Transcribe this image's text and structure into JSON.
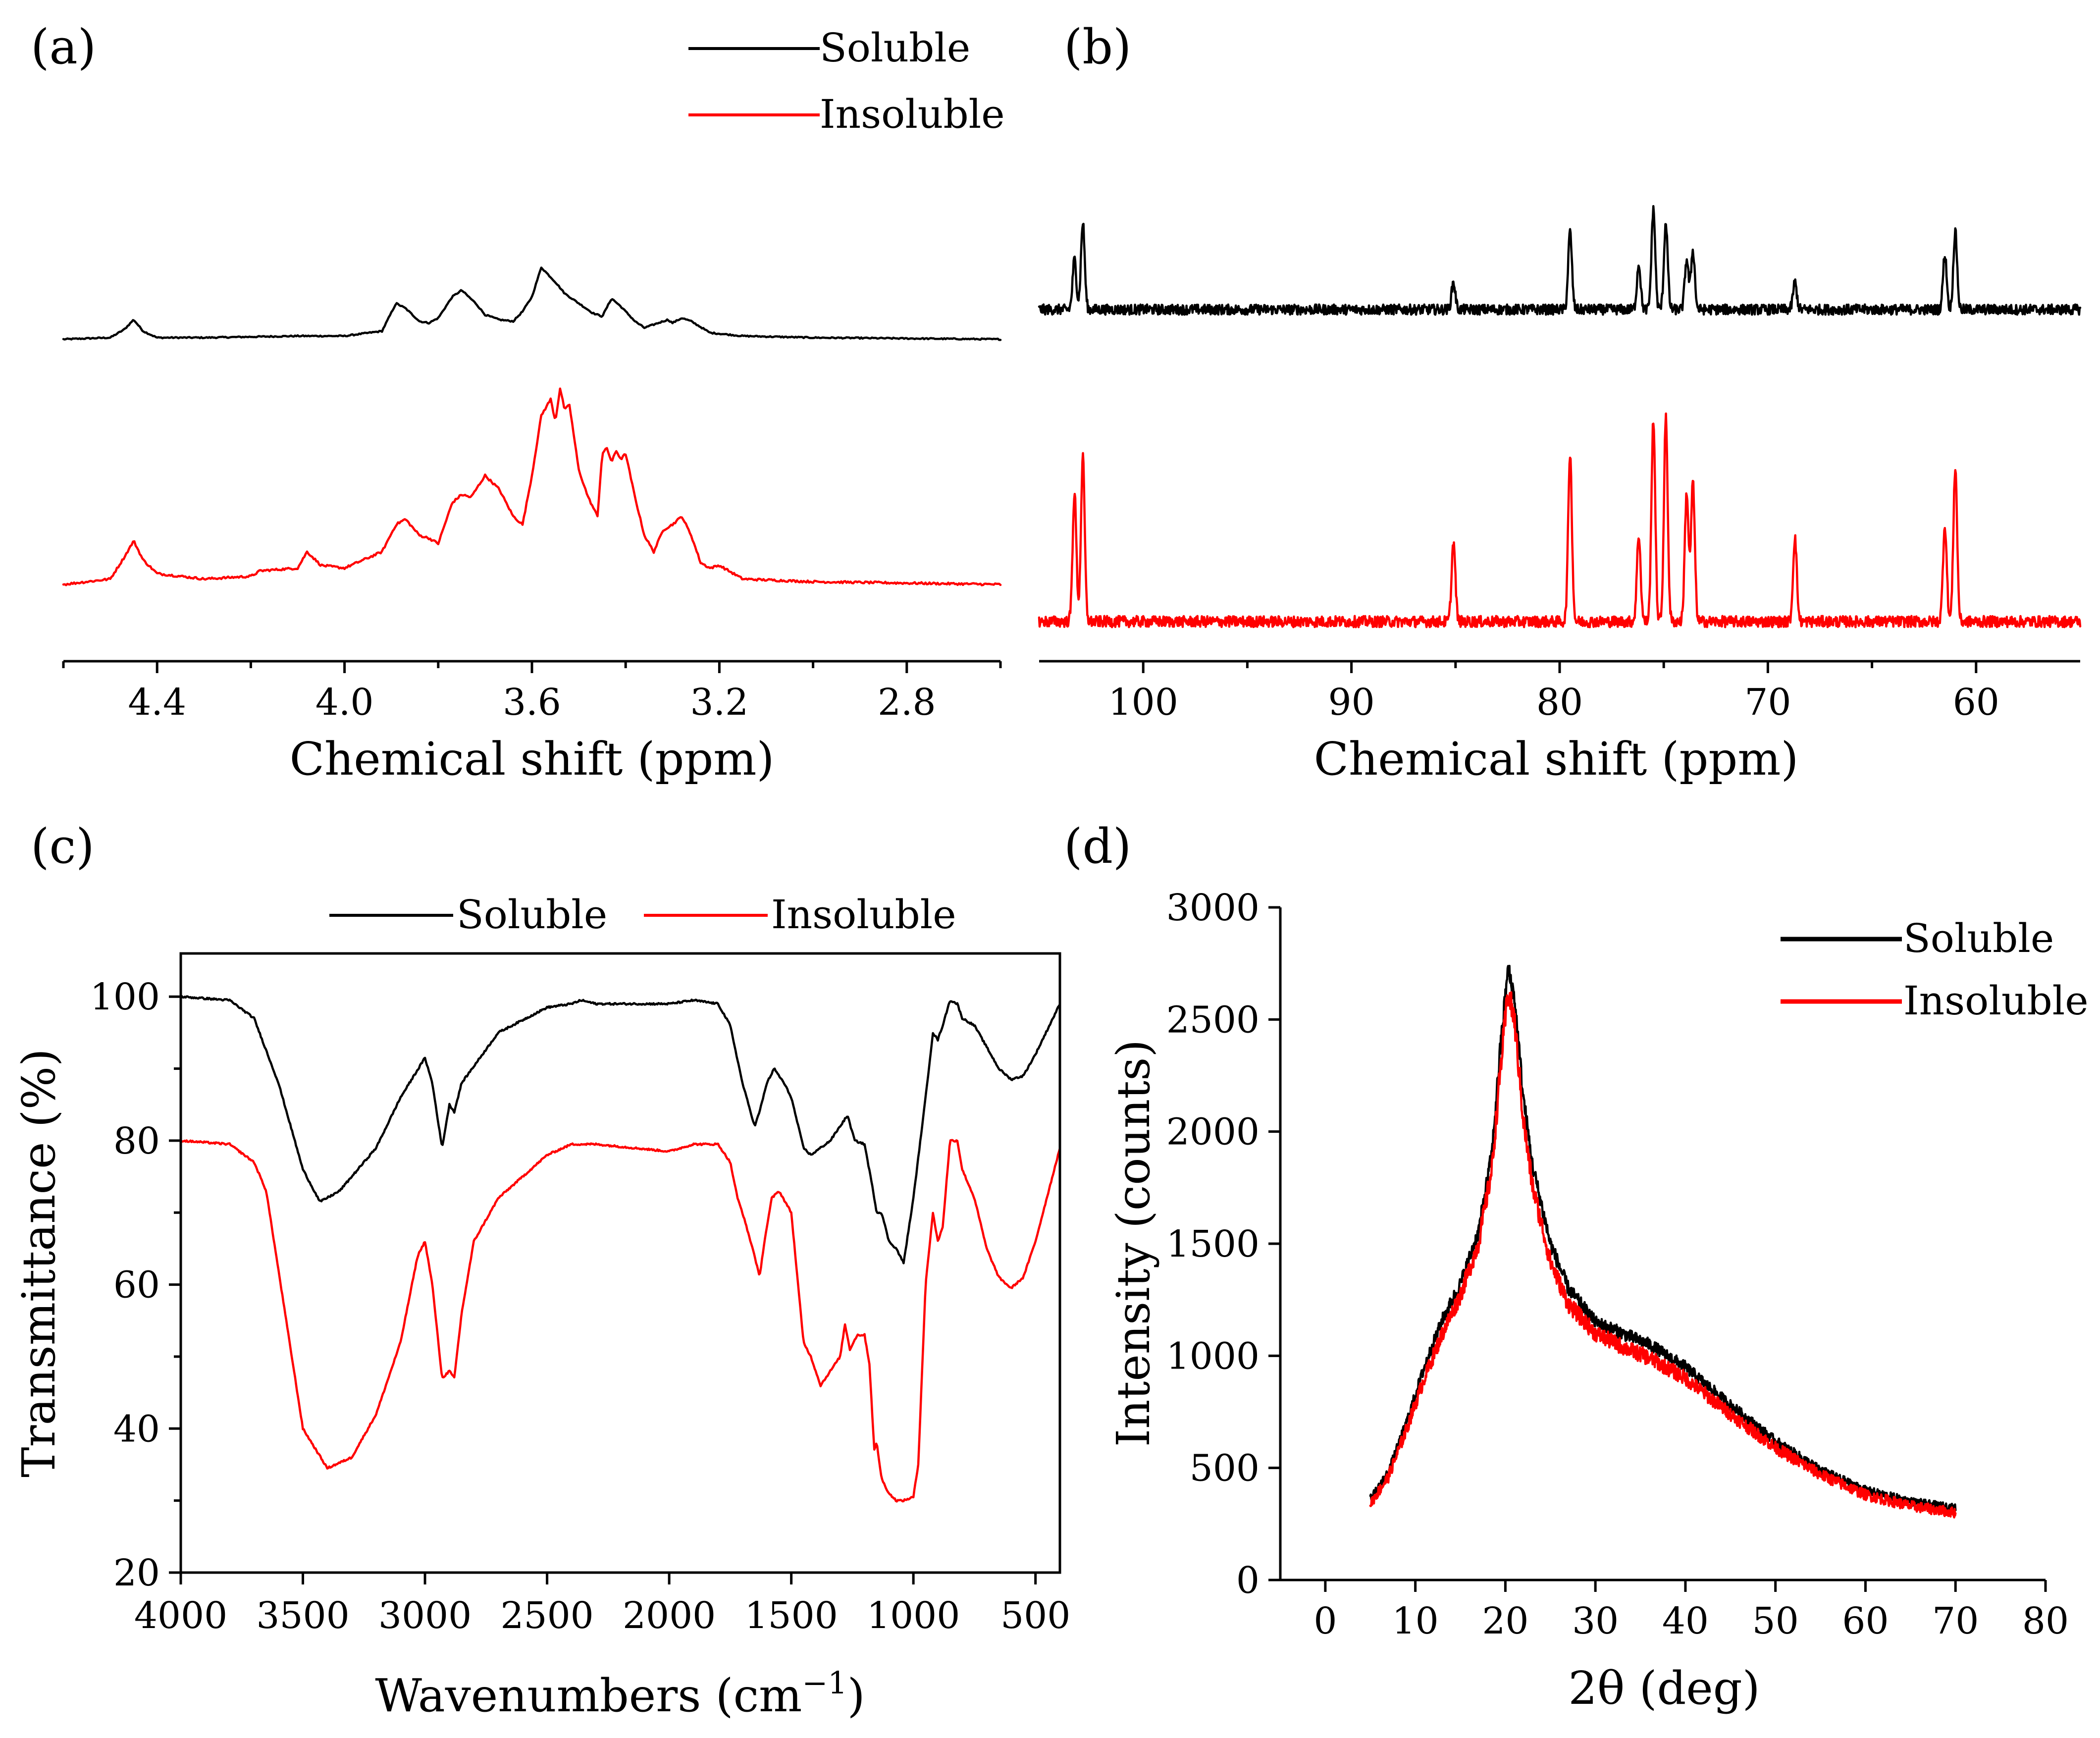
{
  "colors": {
    "soluble": "#000000",
    "insoluble": "#ff0000"
  },
  "chart_data": [
    {
      "id": "a",
      "panel_label": "(a)",
      "type": "line",
      "xlabel": "Chemical shift (ppm)",
      "ylabel": "",
      "xlim": [
        4.6,
        2.6
      ],
      "x_ticks": [
        4.4,
        4.0,
        3.6,
        3.2,
        2.8
      ],
      "x_tick_labels": [
        "4.4",
        "4.0",
        "3.6",
        "3.2",
        "2.8"
      ],
      "x_minor_ticks": [
        4.6,
        4.2,
        3.8,
        3.4,
        3.0,
        2.6
      ],
      "grid": false,
      "legend_position": "top-right",
      "series": [
        {
          "name": "Soluble",
          "color": "#000000",
          "x": [
            4.6,
            4.5,
            4.47,
            4.45,
            4.43,
            4.4,
            4.3,
            4.1,
            4.0,
            3.92,
            3.89,
            3.87,
            3.84,
            3.82,
            3.8,
            3.77,
            3.75,
            3.72,
            3.7,
            3.67,
            3.64,
            3.62,
            3.6,
            3.58,
            3.57,
            3.55,
            3.53,
            3.5,
            3.47,
            3.45,
            3.43,
            3.41,
            3.38,
            3.36,
            3.34,
            3.31,
            3.3,
            3.28,
            3.26,
            3.22,
            3.15,
            3.0,
            2.6
          ],
          "y": [
            0.0,
            0.01,
            0.06,
            0.12,
            0.05,
            0.01,
            0.01,
            0.02,
            0.02,
            0.05,
            0.22,
            0.19,
            0.11,
            0.1,
            0.13,
            0.26,
            0.3,
            0.22,
            0.15,
            0.12,
            0.11,
            0.17,
            0.26,
            0.44,
            0.41,
            0.35,
            0.28,
            0.22,
            0.16,
            0.14,
            0.25,
            0.2,
            0.11,
            0.07,
            0.09,
            0.12,
            0.1,
            0.13,
            0.11,
            0.04,
            0.02,
            0.01,
            0.0
          ]
        },
        {
          "name": "Insoluble",
          "color": "#ff0000",
          "x": [
            4.6,
            4.5,
            4.47,
            4.45,
            4.43,
            4.4,
            4.3,
            4.2,
            4.18,
            4.1,
            4.08,
            4.05,
            4.0,
            3.92,
            3.89,
            3.87,
            3.84,
            3.82,
            3.8,
            3.77,
            3.75,
            3.73,
            3.7,
            3.67,
            3.64,
            3.62,
            3.6,
            3.58,
            3.56,
            3.55,
            3.54,
            3.53,
            3.52,
            3.5,
            3.48,
            3.46,
            3.45,
            3.44,
            3.43,
            3.42,
            3.41,
            3.4,
            3.38,
            3.36,
            3.34,
            3.32,
            3.3,
            3.28,
            3.26,
            3.24,
            3.22,
            3.2,
            3.15,
            3.0,
            2.6
          ],
          "y": [
            0.0,
            0.02,
            0.1,
            0.16,
            0.09,
            0.04,
            0.02,
            0.03,
            0.05,
            0.06,
            0.12,
            0.07,
            0.06,
            0.12,
            0.22,
            0.24,
            0.18,
            0.17,
            0.15,
            0.3,
            0.33,
            0.32,
            0.4,
            0.35,
            0.25,
            0.22,
            0.4,
            0.62,
            0.68,
            0.6,
            0.72,
            0.64,
            0.66,
            0.42,
            0.32,
            0.25,
            0.48,
            0.5,
            0.45,
            0.49,
            0.46,
            0.48,
            0.32,
            0.18,
            0.12,
            0.2,
            0.22,
            0.25,
            0.18,
            0.08,
            0.06,
            0.07,
            0.02,
            0.01,
            0.0
          ]
        }
      ]
    },
    {
      "id": "b",
      "panel_label": "(b)",
      "type": "line",
      "xlabel": "Chemical shift (ppm)",
      "ylabel": "",
      "xlim": [
        105,
        55
      ],
      "x_ticks": [
        100,
        90,
        80,
        70,
        60
      ],
      "x_tick_labels": [
        "100",
        "90",
        "80",
        "70",
        "60"
      ],
      "x_minor_ticks": [
        95,
        85,
        75,
        65
      ],
      "grid": false,
      "peaks_ppm": [
        103.3,
        102.9,
        85.1,
        79.5,
        76.2,
        75.5,
        74.9,
        73.9,
        73.6,
        68.7,
        61.5,
        61.0
      ],
      "series": [
        {
          "name": "Soluble",
          "color": "#000000",
          "peak_heights": [
            0.22,
            0.38,
            0.12,
            0.34,
            0.2,
            0.44,
            0.38,
            0.22,
            0.26,
            0.12,
            0.24,
            0.34
          ]
        },
        {
          "name": "Insoluble",
          "color": "#ff0000",
          "peak_heights": [
            0.52,
            0.66,
            0.32,
            0.68,
            0.35,
            0.82,
            0.82,
            0.52,
            0.56,
            0.34,
            0.39,
            0.62
          ]
        }
      ]
    },
    {
      "id": "c",
      "panel_label": "(c)",
      "type": "line",
      "xlabel": "Wavenumbers (cm",
      "xlabel_sup": "−1",
      "xlabel_end": ")",
      "ylabel": "Transmittance (%)",
      "xlim": [
        4000,
        400
      ],
      "ylim": [
        20,
        106
      ],
      "x_ticks": [
        4000,
        3500,
        3000,
        2500,
        2000,
        1500,
        1000,
        500
      ],
      "x_tick_labels": [
        "4000",
        "3500",
        "3000",
        "2500",
        "2000",
        "1500",
        "1000",
        "500"
      ],
      "y_ticks": [
        20,
        40,
        60,
        80,
        100
      ],
      "y_tick_labels": [
        "20",
        "40",
        "60",
        "80",
        "100"
      ],
      "grid": false,
      "legend_position": "top-center",
      "series": [
        {
          "name": "Soluble",
          "color": "#000000",
          "x": [
            4000,
            3800,
            3700,
            3600,
            3500,
            3430,
            3350,
            3200,
            3100,
            3000,
            2970,
            2930,
            2900,
            2880,
            2850,
            2700,
            2500,
            2400,
            2360,
            2300,
            2000,
            1900,
            1800,
            1750,
            1700,
            1650,
            1630,
            1600,
            1570,
            1530,
            1500,
            1450,
            1420,
            1380,
            1340,
            1300,
            1270,
            1240,
            1200,
            1170,
            1150,
            1130,
            1100,
            1070,
            1040,
            1000,
            950,
            920,
            900,
            880,
            850,
            820,
            800,
            750,
            700,
            650,
            600,
            550,
            500,
            400
          ],
          "y": [
            100,
            99.5,
            97,
            88,
            76,
            71.5,
            73,
            79,
            86,
            91.5,
            88,
            79,
            85,
            84,
            88,
            95,
            98.5,
            99,
            99.5,
            99,
            99,
            99.5,
            99,
            96,
            88,
            82,
            84,
            88,
            90,
            88,
            86,
            79,
            78,
            79,
            80,
            82,
            83.5,
            80,
            79.5,
            74,
            70,
            70,
            66,
            65,
            63,
            72,
            86,
            95,
            94,
            96,
            99.5,
            99,
            97,
            96,
            93,
            90,
            88.5,
            89,
            92,
            99
          ]
        },
        {
          "name": "Insoluble",
          "color": "#ff0000",
          "x": [
            4000,
            3800,
            3700,
            3650,
            3600,
            3500,
            3400,
            3300,
            3200,
            3100,
            3030,
            3000,
            2970,
            2930,
            2900,
            2880,
            2850,
            2800,
            2700,
            2500,
            2400,
            2300,
            2000,
            1900,
            1800,
            1750,
            1720,
            1700,
            1650,
            1630,
            1610,
            1580,
            1550,
            1500,
            1450,
            1420,
            1380,
            1340,
            1300,
            1280,
            1260,
            1230,
            1200,
            1180,
            1160,
            1150,
            1130,
            1100,
            1070,
            1040,
            1000,
            980,
            950,
            920,
            900,
            880,
            850,
            820,
            800,
            750,
            700,
            650,
            600,
            550,
            500,
            400
          ],
          "y": [
            80,
            79.5,
            77,
            73,
            62,
            40,
            34.5,
            36,
            42,
            52,
            64,
            66,
            60,
            47,
            48,
            47,
            56,
            66,
            72,
            78,
            79.5,
            79.5,
            78.5,
            79.5,
            79.5,
            77,
            72,
            70,
            64,
            61,
            66,
            72,
            73,
            70,
            52,
            50,
            46,
            48,
            50,
            54.5,
            51,
            53,
            53,
            49,
            37,
            38,
            33,
            31,
            30,
            30,
            30.5,
            35,
            60,
            70,
            66,
            68,
            80,
            80,
            76,
            72,
            65,
            61,
            59.5,
            61,
            66,
            79
          ]
        }
      ]
    },
    {
      "id": "d",
      "panel_label": "(d)",
      "type": "line",
      "xlabel": "2θ (deg)",
      "ylabel": "Intensity (counts)",
      "xlim": [
        -5,
        80
      ],
      "ylim": [
        0,
        3000
      ],
      "x_ticks": [
        0,
        10,
        20,
        30,
        40,
        50,
        60,
        70,
        80
      ],
      "x_tick_labels": [
        "0",
        "10",
        "20",
        "30",
        "40",
        "50",
        "60",
        "70",
        "80"
      ],
      "y_ticks": [
        0,
        500,
        1000,
        1500,
        2000,
        2500,
        3000
      ],
      "y_tick_labels": [
        "0",
        "500",
        "1000",
        "1500",
        "2000",
        "2500",
        "3000"
      ],
      "grid": false,
      "legend_position": "top-right",
      "series": [
        {
          "name": "Soluble",
          "color": "#000000",
          "x": [
            5,
            7,
            9,
            11,
            13,
            15,
            17,
            18.5,
            19.5,
            20.3,
            21,
            22,
            23,
            25,
            27,
            30,
            33,
            36,
            40,
            45,
            50,
            55,
            60,
            65,
            70
          ],
          "y": [
            360,
            480,
            700,
            950,
            1160,
            1320,
            1550,
            1900,
            2400,
            2720,
            2600,
            2150,
            1850,
            1500,
            1300,
            1150,
            1100,
            1050,
            950,
            780,
            620,
            490,
            400,
            350,
            320
          ]
        },
        {
          "name": "Insoluble",
          "color": "#ff0000",
          "x": [
            5,
            7,
            9,
            11,
            13,
            15,
            17,
            18.5,
            19.5,
            20.3,
            21,
            22,
            23,
            25,
            27,
            30,
            33,
            36,
            40,
            45,
            50,
            55,
            60,
            65,
            70
          ],
          "y": [
            340,
            460,
            670,
            900,
            1100,
            1270,
            1500,
            1830,
            2300,
            2620,
            2500,
            2050,
            1760,
            1420,
            1230,
            1100,
            1040,
            990,
            900,
            740,
            590,
            470,
            380,
            330,
            300
          ]
        }
      ]
    }
  ]
}
